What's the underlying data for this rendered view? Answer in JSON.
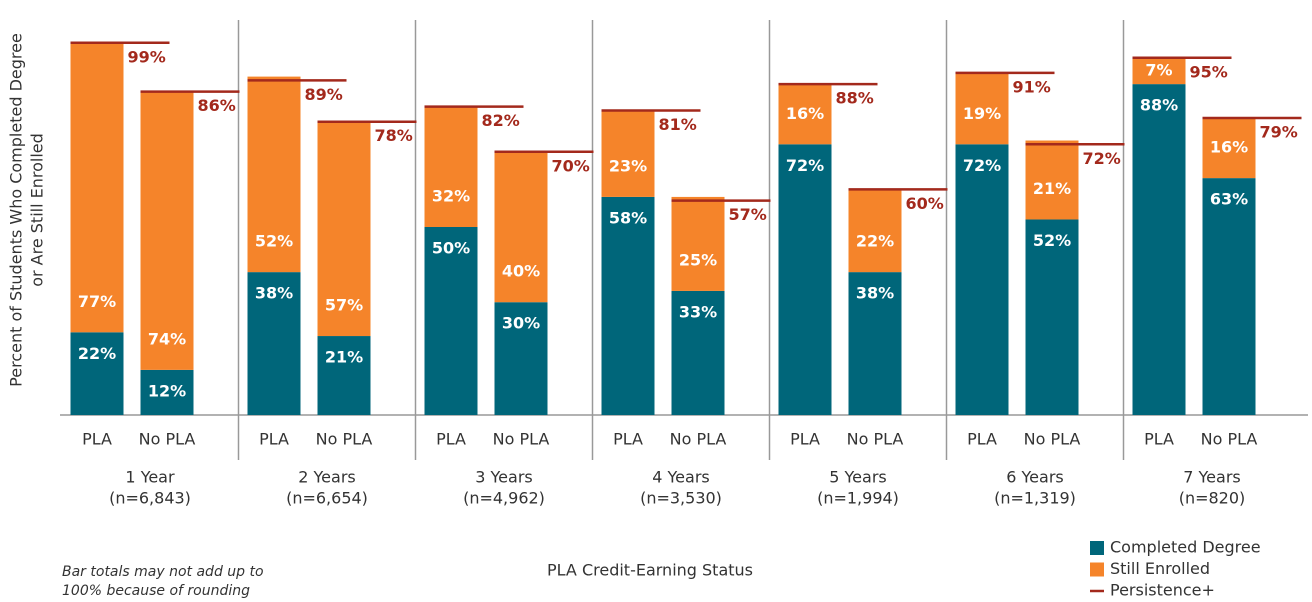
{
  "chart_data": {
    "type": "bar",
    "stacked": true,
    "y_label": [
      "Percent of Students Who Completed Degree",
      "or Are Still Enrolled"
    ],
    "x_label": "PLA Credit-Earning Status",
    "note": [
      "Bar totals may not add up to",
      "100% because of rounding"
    ],
    "ylim": [
      0,
      100
    ],
    "categories": [
      "PLA",
      "No PLA",
      "PLA",
      "No PLA",
      "PLA",
      "No PLA",
      "PLA",
      "No PLA",
      "PLA",
      "No PLA",
      "PLA",
      "No PLA",
      "PLA",
      "No PLA"
    ],
    "groups": [
      {
        "name": "1 Year",
        "n": "(n=6,843)"
      },
      {
        "name": "2 Years",
        "n": "(n=6,654)"
      },
      {
        "name": "3 Years",
        "n": "(n=4,962)"
      },
      {
        "name": "4 Years",
        "n": "(n=3,530)"
      },
      {
        "name": "5 Years",
        "n": "(n=1,994)"
      },
      {
        "name": "6 Years",
        "n": "(n=1,319)"
      },
      {
        "name": "7 Years",
        "n": "(n=820)"
      }
    ],
    "series": [
      {
        "name": "Completed Degree",
        "color": "#00667a",
        "values": [
          22,
          12,
          38,
          21,
          50,
          30,
          58,
          33,
          72,
          38,
          72,
          52,
          88,
          63
        ],
        "value_labels": [
          "22%",
          "12%",
          "38%",
          "21%",
          "50%",
          "30%",
          "58%",
          "33%",
          "72%",
          "38%",
          "72%",
          "52%",
          "88%",
          "63%"
        ]
      },
      {
        "name": "Still Enrolled",
        "color": "#f5842a",
        "values": [
          77,
          74,
          52,
          57,
          32,
          40,
          23,
          25,
          16,
          22,
          19,
          21,
          7,
          16
        ],
        "value_labels": [
          "77%",
          "74%",
          "52%",
          "57%",
          "32%",
          "40%",
          "23%",
          "25%",
          "16%",
          "22%",
          "19%",
          "21%",
          "7%",
          "16%"
        ]
      },
      {
        "name": "Persistence+",
        "color": "#a3291c",
        "kind": "marker-line",
        "values": [
          99,
          86,
          89,
          78,
          82,
          70,
          81,
          57,
          88,
          60,
          91,
          72,
          95,
          79
        ],
        "value_labels": [
          "99%",
          "86%",
          "89%",
          "78%",
          "82%",
          "70%",
          "81%",
          "57%",
          "88%",
          "60%",
          "91%",
          "72%",
          "95%",
          "79%"
        ]
      }
    ]
  }
}
